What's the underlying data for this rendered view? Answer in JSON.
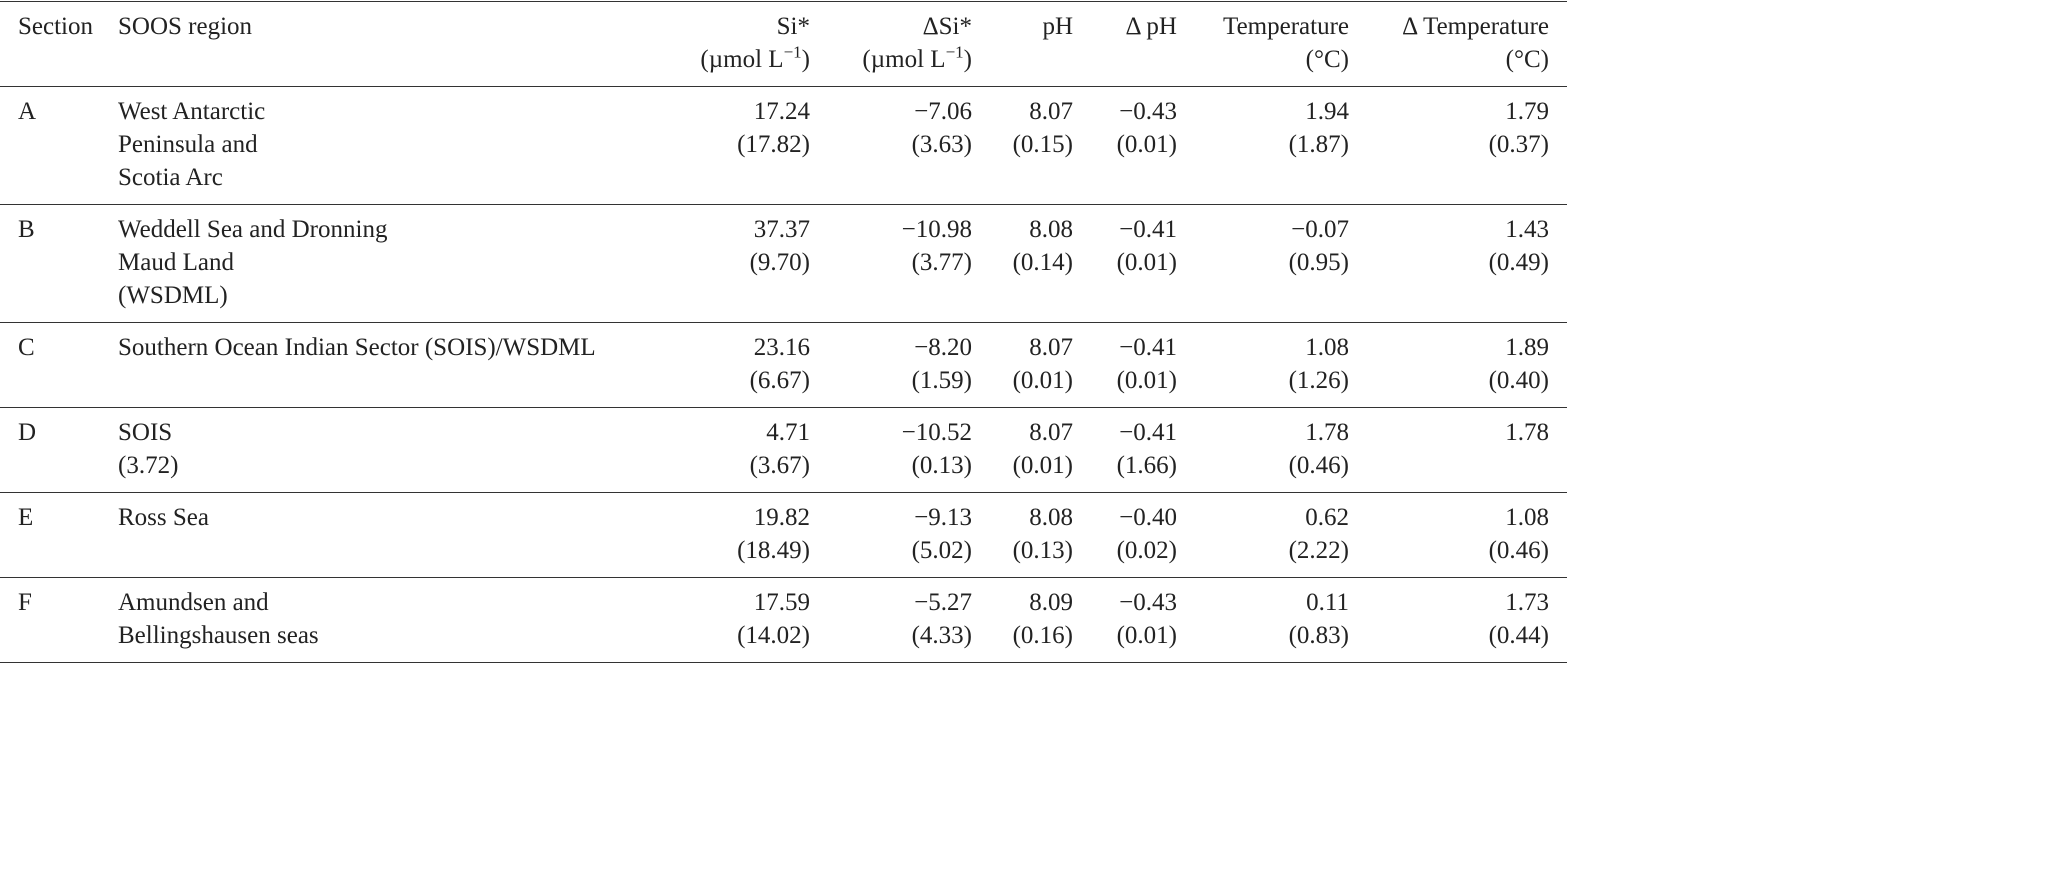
{
  "table": {
    "headers": [
      {
        "label": "Section"
      },
      {
        "label": "SOOS region"
      },
      {
        "label": "Si*",
        "unit": [
          "(µmol L",
          "−1",
          ")"
        ]
      },
      {
        "label": "ΔSi*",
        "unit": [
          "(µmol L",
          "−1",
          ")"
        ]
      },
      {
        "label": "pH"
      },
      {
        "label": "Δ pH"
      },
      {
        "label": "Temperature",
        "unit": [
          "(°C)"
        ]
      },
      {
        "label": "Δ Temperature",
        "unit": [
          "(°C)"
        ]
      }
    ],
    "rows": [
      [
        [
          "A"
        ],
        [
          "West Antarctic",
          "Peninsula and",
          "Scotia Arc"
        ],
        [
          "17.24",
          "(17.82)"
        ],
        [
          "−7.06",
          "(3.63)"
        ],
        [
          "8.07",
          "(0.15)"
        ],
        [
          "−0.43",
          "(0.01)"
        ],
        [
          "1.94",
          "(1.87)"
        ],
        [
          "1.79",
          "(0.37)"
        ]
      ],
      [
        [
          "B"
        ],
        [
          "Weddell Sea and Dronning",
          "Maud Land",
          "(WSDML)"
        ],
        [
          "37.37",
          "(9.70)"
        ],
        [
          "−10.98",
          "(3.77)"
        ],
        [
          "8.08",
          "(0.14)"
        ],
        [
          "−0.41",
          "(0.01)"
        ],
        [
          "−0.07",
          "(0.95)"
        ],
        [
          "1.43",
          "(0.49)"
        ]
      ],
      [
        [
          "C"
        ],
        [
          "Southern Ocean Indian Sector (SOIS)/WSDML"
        ],
        [
          "23.16",
          "(6.67)"
        ],
        [
          "−8.20",
          "(1.59)"
        ],
        [
          "8.07",
          "(0.01)"
        ],
        [
          "−0.41",
          "(0.01)"
        ],
        [
          "1.08",
          "(1.26)"
        ],
        [
          "1.89",
          "(0.40)"
        ]
      ],
      [
        [
          "D"
        ],
        [
          "SOIS",
          "(3.72)"
        ],
        [
          "4.71",
          "(3.67)"
        ],
        [
          "−10.52",
          "(0.13)"
        ],
        [
          "8.07",
          "(0.01)"
        ],
        [
          "−0.41",
          "(1.66)"
        ],
        [
          "1.78",
          "(0.46)"
        ],
        [
          "1.78"
        ]
      ],
      [
        [
          "E"
        ],
        [
          "Ross Sea"
        ],
        [
          "19.82",
          "(18.49)"
        ],
        [
          "−9.13",
          "(5.02)"
        ],
        [
          "8.08",
          "(0.13)"
        ],
        [
          "−0.40",
          "(0.02)"
        ],
        [
          "0.62",
          "(2.22)"
        ],
        [
          "1.08",
          "(0.46)"
        ]
      ],
      [
        [
          "F"
        ],
        [
          "Amundsen and",
          "Bellingshausen seas"
        ],
        [
          "17.59",
          "(14.02)"
        ],
        [
          "−5.27",
          "(4.33)"
        ],
        [
          "8.09",
          "(0.16)"
        ],
        [
          "−0.43",
          "(0.01)"
        ],
        [
          "0.11",
          "(0.83)"
        ],
        [
          "1.73",
          "(0.44)"
        ]
      ]
    ]
  }
}
